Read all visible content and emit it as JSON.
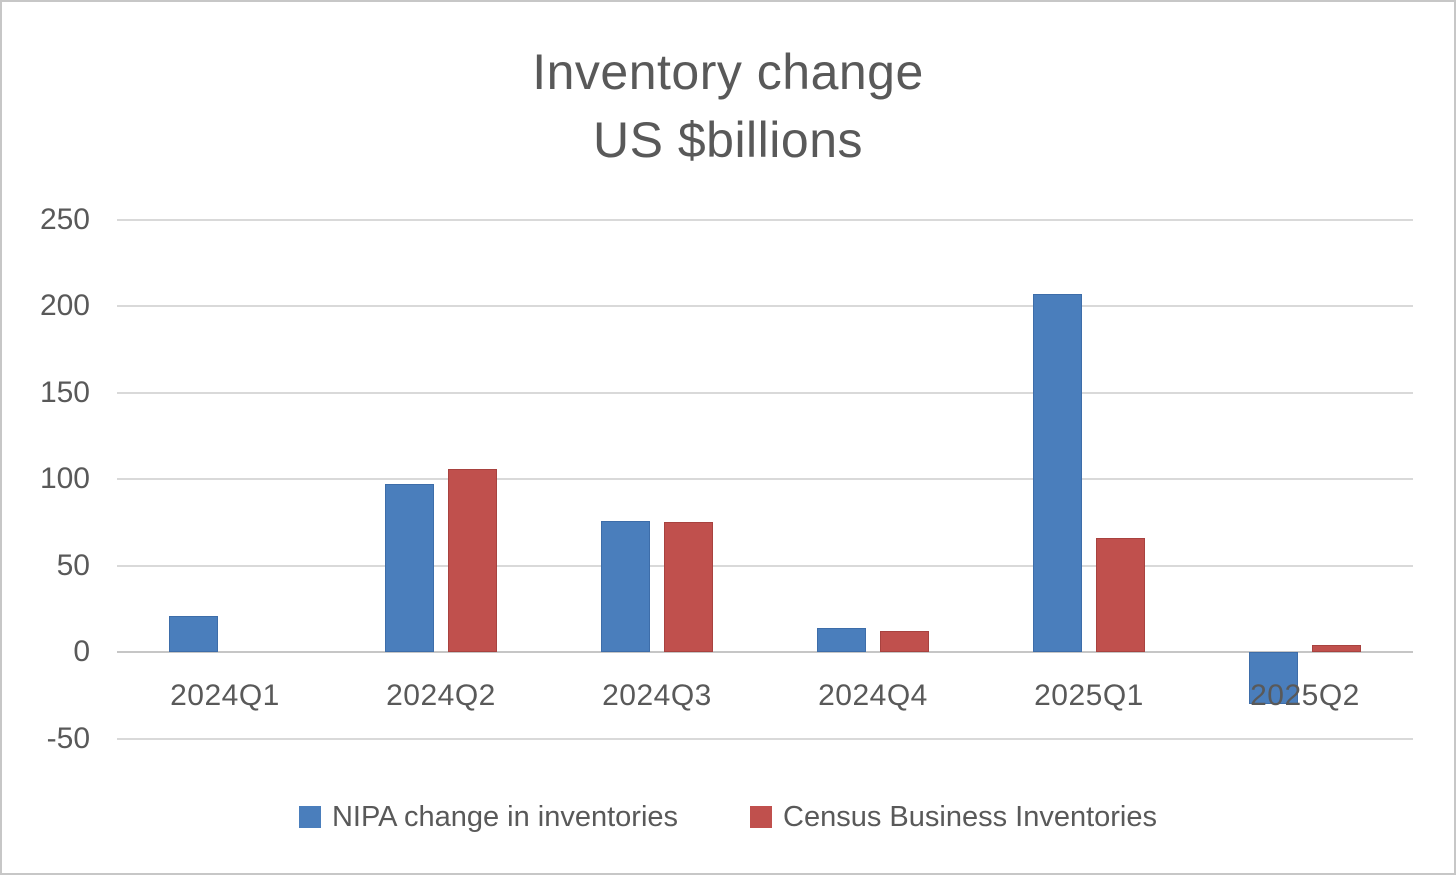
{
  "page": {
    "background": "#ffffff",
    "frame_border_color": "#c7c7c7"
  },
  "chart_data": {
    "type": "bar",
    "title": "Inventory change",
    "subtitle": "US $billions",
    "categories": [
      "2024Q1",
      "2024Q2",
      "2024Q3",
      "2024Q4",
      "2025Q1",
      "2025Q2"
    ],
    "series": [
      {
        "name": "NIPA change in inventories",
        "color": "#4a7ebc",
        "border_color": "#3d6da9",
        "values": [
          21,
          97,
          76,
          14,
          207,
          -30
        ]
      },
      {
        "name": "Census Business Inventories",
        "color": "#c0504d",
        "border_color": "#a8423f",
        "values": [
          null,
          106,
          75,
          12,
          66,
          4
        ]
      }
    ],
    "y_axis": {
      "min": -50,
      "max": 250,
      "step": 50,
      "tick_labels": [
        "250",
        "200",
        "150",
        "100",
        "50",
        "0",
        "-50"
      ]
    },
    "grid": true,
    "legend_position": "bottom",
    "text_color": "#595959",
    "gridline_color": "#d9d9d9",
    "axis_line_color": "#c6c6c6"
  }
}
